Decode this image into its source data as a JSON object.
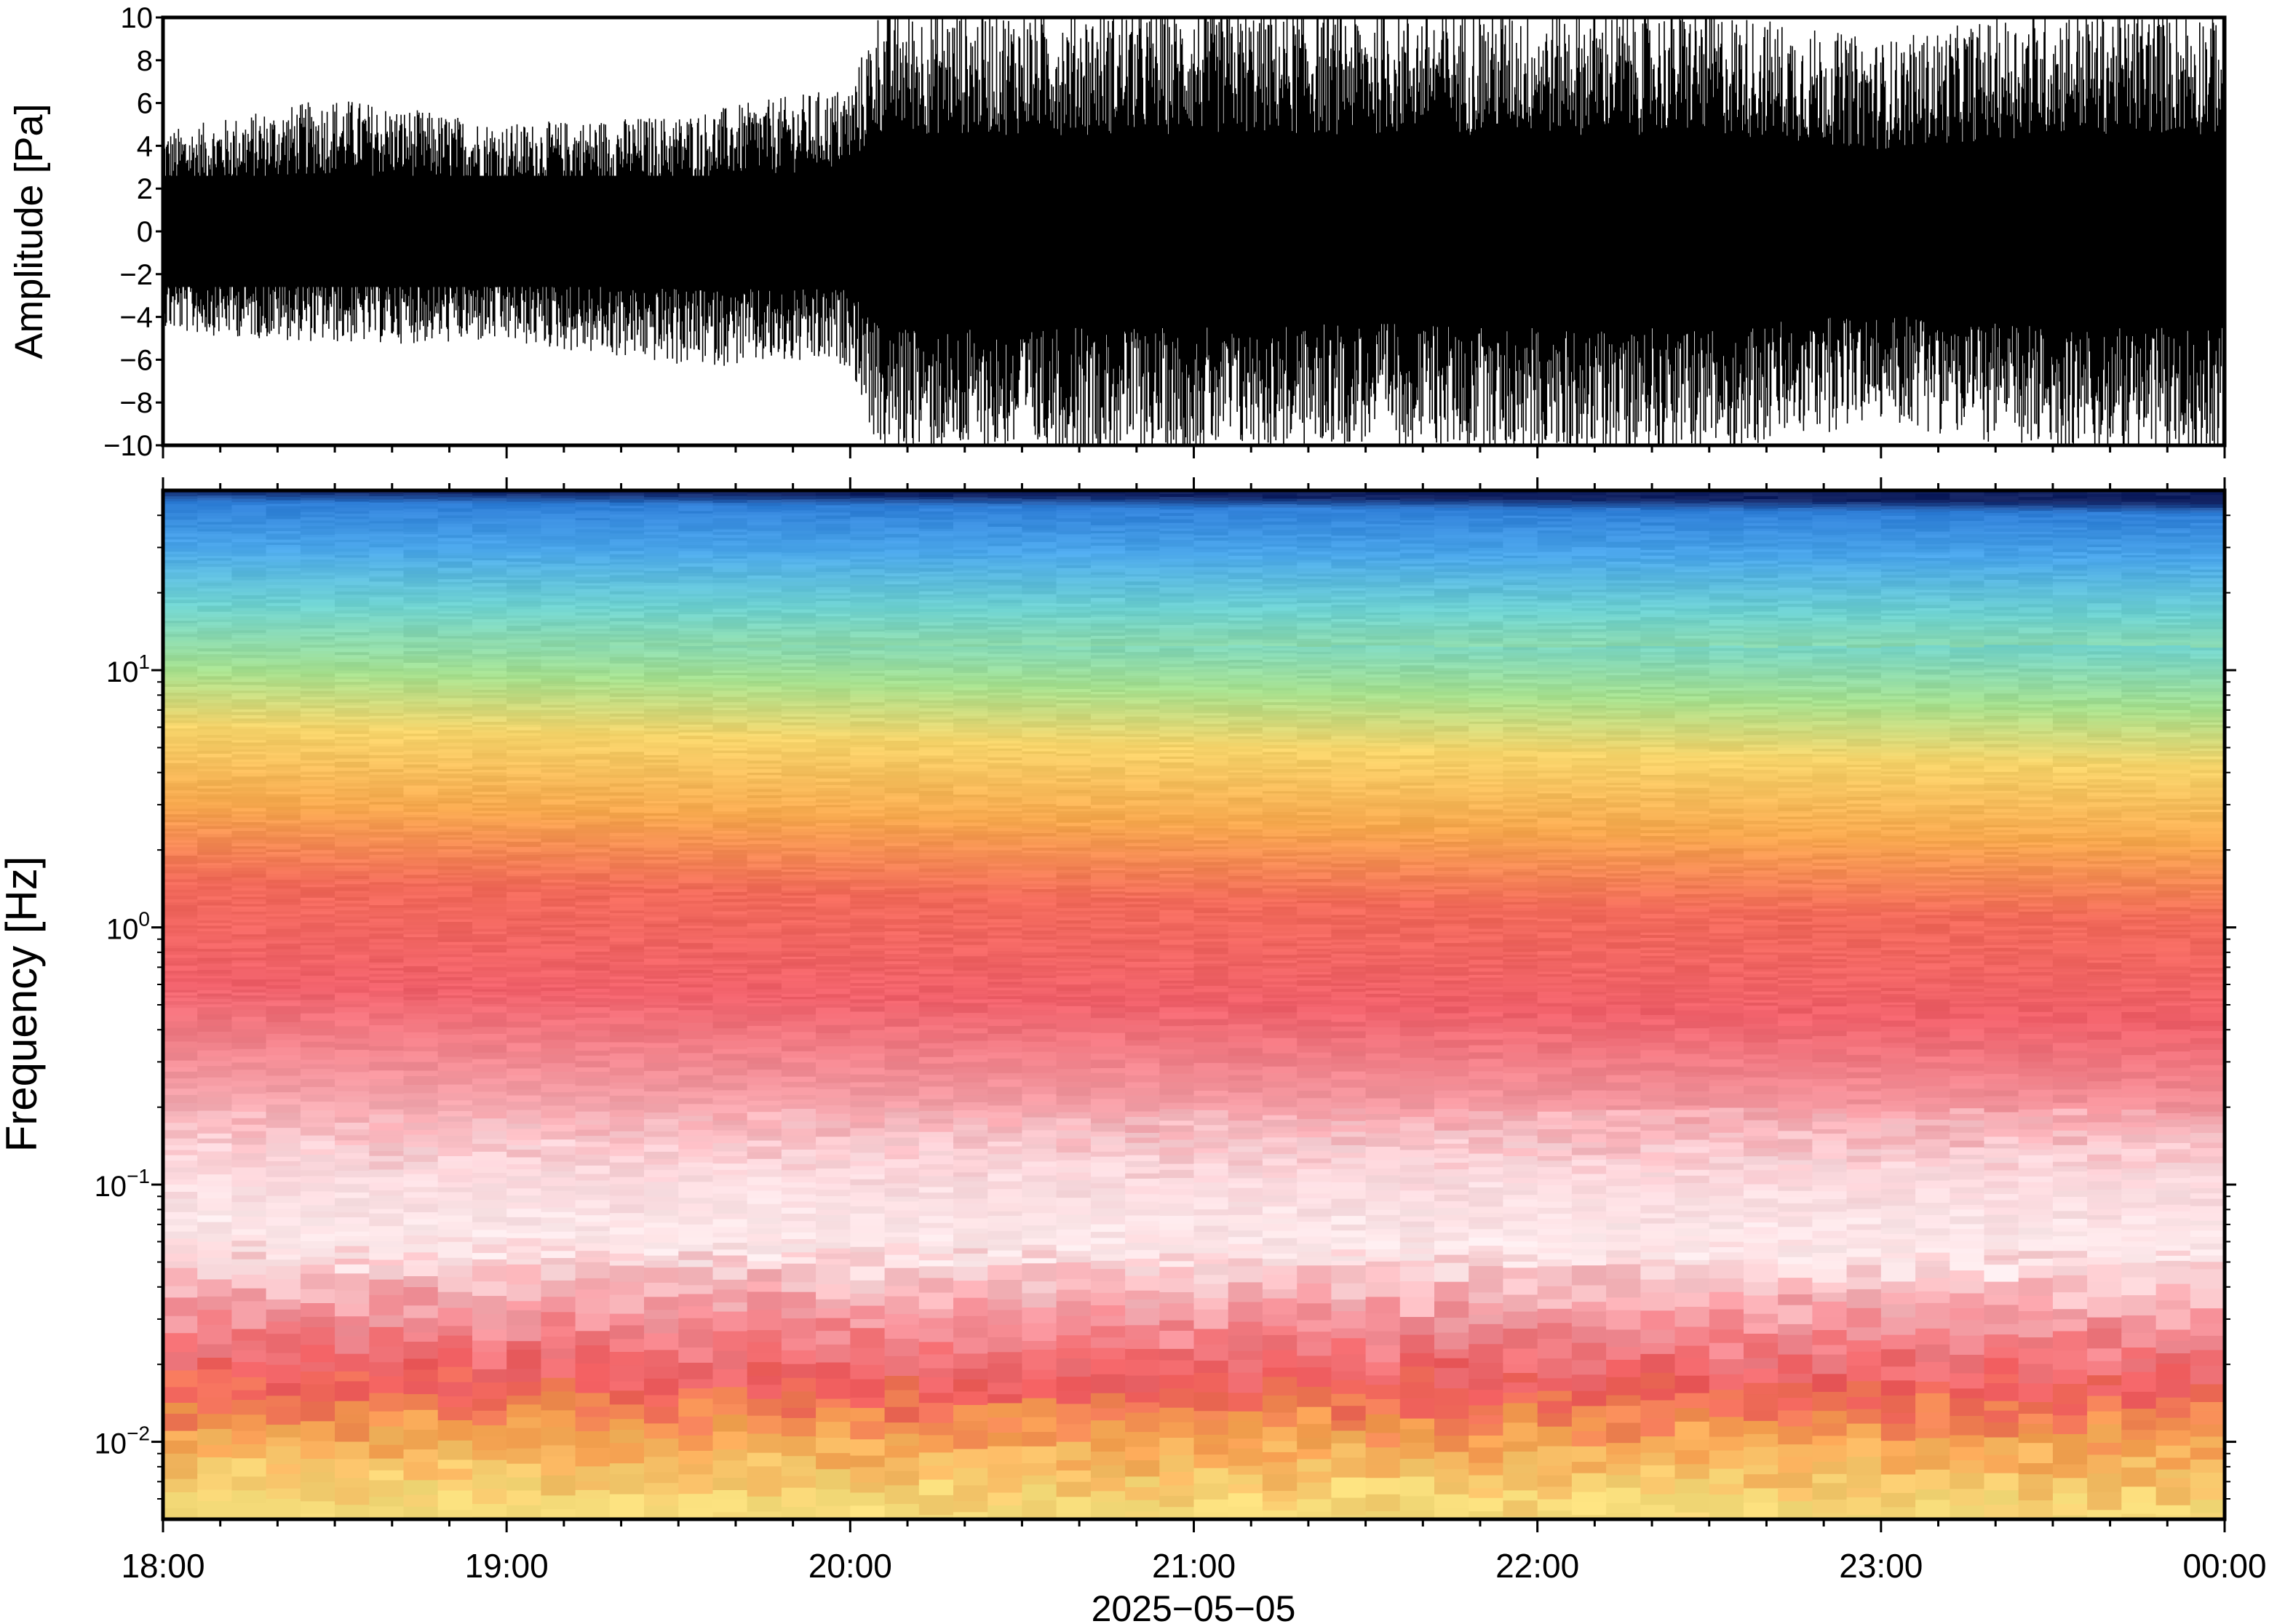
{
  "chart_data": [
    {
      "type": "line",
      "panel": "waveform",
      "ylabel": "Amplitude [Pa]",
      "ylim": [
        -10,
        10
      ],
      "yticks": [
        -10,
        -8,
        -6,
        -4,
        -2,
        0,
        2,
        4,
        6,
        8,
        10
      ],
      "ytick_labels": [
        "−10",
        "−8",
        "−6",
        "−4",
        "−2",
        "0",
        "2",
        "4",
        "6",
        "8",
        "10"
      ],
      "x_hours_tick_labels": [
        "18:00",
        "19:00",
        "20:00",
        "21:00",
        "22:00",
        "23:00",
        "00:00"
      ],
      "envelope": {
        "x": [
          "18:00",
          "18:30",
          "19:00",
          "19:30",
          "20:00",
          "20:05",
          "20:30",
          "21:00",
          "21:30",
          "22:00",
          "22:30",
          "23:00",
          "23:30",
          "00:00"
        ],
        "upper": [
          4.5,
          6.0,
          4.8,
          5.2,
          6.5,
          10,
          10,
          10,
          10,
          10,
          10,
          8.5,
          10,
          10
        ],
        "lower": [
          -4.5,
          -5.0,
          -5.0,
          -6.0,
          -6.0,
          -10,
          -10,
          -10,
          -9.5,
          -10,
          -10,
          -8.5,
          -10,
          -10
        ]
      },
      "color": "#000000"
    },
    {
      "type": "heatmap",
      "panel": "spectrogram",
      "ylabel": "Frequency [Hz]",
      "yscale": "log",
      "ylim": [
        0.005,
        50
      ],
      "yticks": [
        0.01,
        0.1,
        1,
        10
      ],
      "ytick_labels": [
        {
          "base": "10",
          "exp": "−2"
        },
        {
          "base": "10",
          "exp": "−1"
        },
        {
          "base": "10",
          "exp": "0"
        },
        {
          "base": "10",
          "exp": "1"
        }
      ],
      "xlabel": "2025−05−05",
      "x_tick_labels": [
        "18:00",
        "19:00",
        "20:00",
        "21:00",
        "22:00",
        "23:00",
        "00:00"
      ],
      "colormap_by_frequency": [
        {
          "freq": 50,
          "color": "#102060"
        },
        {
          "freq": 45,
          "color": "#2f7fd8"
        },
        {
          "freq": 30,
          "color": "#4aa6ea"
        },
        {
          "freq": 18,
          "color": "#6ed2d0"
        },
        {
          "freq": 10,
          "color": "#a6e08e"
        },
        {
          "freq": 6,
          "color": "#f6d46a"
        },
        {
          "freq": 3,
          "color": "#f7a84e"
        },
        {
          "freq": 1.5,
          "color": "#f26a5a"
        },
        {
          "freq": 0.6,
          "color": "#f0606a"
        },
        {
          "freq": 0.25,
          "color": "#f39aa2"
        },
        {
          "freq": 0.12,
          "color": "#fbd7dc"
        },
        {
          "freq": 0.06,
          "color": "#fde9eb"
        },
        {
          "freq": 0.03,
          "color": "#f28c94"
        },
        {
          "freq": 0.018,
          "color": "#ee5a5c"
        },
        {
          "freq": 0.011,
          "color": "#f5a050"
        },
        {
          "freq": 0.006,
          "color": "#f6dc7a"
        }
      ]
    }
  ]
}
